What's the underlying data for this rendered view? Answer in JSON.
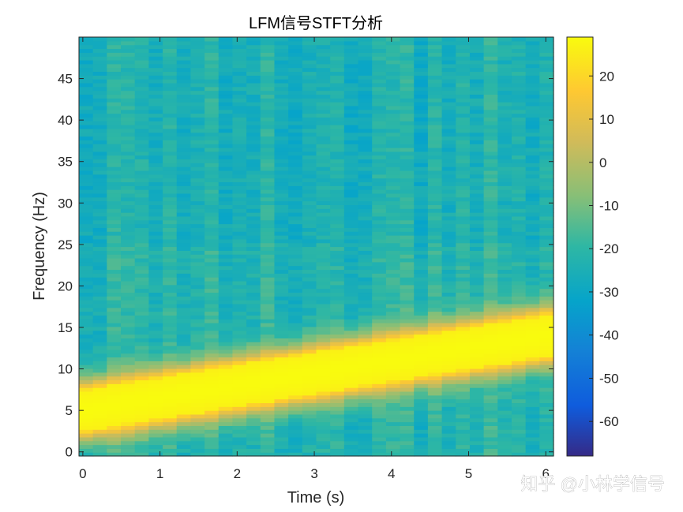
{
  "chart_data": {
    "type": "heatmap",
    "title": "LFM信号STFT分析",
    "xlabel": "Time (s)",
    "ylabel": "Frequency (Hz)",
    "xlim": [
      -0.05,
      6.1
    ],
    "ylim": [
      -0.5,
      50
    ],
    "xticks": [
      0,
      1,
      2,
      3,
      4,
      5,
      6
    ],
    "yticks": [
      0,
      5,
      10,
      15,
      20,
      25,
      30,
      35,
      40,
      45
    ],
    "colorbar": {
      "range": [
        -68,
        29
      ],
      "ticks": [
        20,
        10,
        0,
        -10,
        -20,
        -30,
        -40,
        -50,
        -60
      ]
    },
    "colormap": "parula",
    "ridge": {
      "description_values": "LFM chirp, instantaneous frequency vs time",
      "time": [
        0,
        1,
        2,
        3,
        4,
        5,
        6
      ],
      "center_frequency": [
        5,
        6.5,
        8,
        9.5,
        11,
        12.5,
        14
      ],
      "bandwidth_half": 3.5,
      "peak_db": 29,
      "background_db": -22
    }
  },
  "watermark": "知乎 @小林学信号"
}
